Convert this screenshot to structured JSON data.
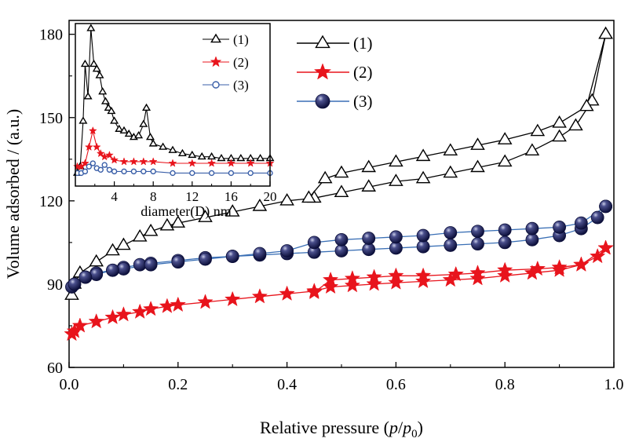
{
  "chart_data": [
    {
      "type": "line",
      "xlabel_main": "Relative pressure (",
      "xlabel_p": "p",
      "xlabel_slash": "/",
      "xlabel_p0": "p",
      "xlabel_sub": "0",
      "xlabel_close": ")",
      "ylabel": "Volume adsorbed / (a.u.)",
      "xlim": [
        0.0,
        1.0
      ],
      "ylim": [
        60,
        185
      ],
      "xticks": [
        "0.0",
        "0.2",
        "0.4",
        "0.6",
        "0.8",
        "1.0"
      ],
      "yticks": [
        "60",
        "90",
        "120",
        "150",
        "180"
      ],
      "legend_placement": "top-right",
      "series": [
        {
          "name": "(1)",
          "color": "#000000",
          "marker": "triangle",
          "adsorption": [
            [
              0.005,
              86
            ],
            [
              0.01,
              90
            ],
            [
              0.02,
              94
            ],
            [
              0.05,
              98
            ],
            [
              0.08,
              102
            ],
            [
              0.1,
              104
            ],
            [
              0.13,
              107
            ],
            [
              0.15,
              109
            ],
            [
              0.18,
              111
            ],
            [
              0.2,
              112
            ],
            [
              0.25,
              114
            ],
            [
              0.3,
              116
            ],
            [
              0.35,
              118
            ],
            [
              0.4,
              120
            ],
            [
              0.45,
              121
            ],
            [
              0.5,
              123
            ],
            [
              0.55,
              125
            ],
            [
              0.6,
              127
            ],
            [
              0.65,
              128
            ],
            [
              0.7,
              130
            ],
            [
              0.75,
              132
            ],
            [
              0.8,
              134
            ],
            [
              0.85,
              138
            ],
            [
              0.9,
              143
            ],
            [
              0.93,
              147
            ],
            [
              0.96,
              156
            ],
            [
              0.985,
              180
            ]
          ],
          "desorption": [
            [
              0.985,
              180
            ],
            [
              0.95,
              154
            ],
            [
              0.9,
              148
            ],
            [
              0.86,
              145
            ],
            [
              0.8,
              142
            ],
            [
              0.75,
              140
            ],
            [
              0.7,
              138
            ],
            [
              0.65,
              136
            ],
            [
              0.6,
              134
            ],
            [
              0.55,
              132
            ],
            [
              0.5,
              130
            ],
            [
              0.47,
              128
            ],
            [
              0.44,
              121
            ]
          ]
        },
        {
          "name": "(2)",
          "color": "#e8141c",
          "marker": "star",
          "adsorption": [
            [
              0.005,
              72
            ],
            [
              0.01,
              73
            ],
            [
              0.02,
              75
            ],
            [
              0.05,
              76.5
            ],
            [
              0.08,
              78
            ],
            [
              0.1,
              79
            ],
            [
              0.13,
              80
            ],
            [
              0.15,
              81
            ],
            [
              0.18,
              82
            ],
            [
              0.2,
              82.5
            ],
            [
              0.25,
              83.5
            ],
            [
              0.3,
              84.5
            ],
            [
              0.35,
              85.5
            ],
            [
              0.4,
              86.5
            ],
            [
              0.45,
              87.5
            ],
            [
              0.48,
              89
            ],
            [
              0.52,
              89.5
            ],
            [
              0.56,
              90
            ],
            [
              0.6,
              90.5
            ],
            [
              0.65,
              91
            ],
            [
              0.7,
              91.5
            ],
            [
              0.75,
              92
            ],
            [
              0.8,
              93
            ],
            [
              0.85,
              94
            ],
            [
              0.9,
              95
            ],
            [
              0.94,
              97
            ],
            [
              0.97,
              100
            ],
            [
              0.985,
              103
            ]
          ],
          "desorption": [
            [
              0.985,
              103
            ],
            [
              0.94,
              97
            ],
            [
              0.9,
              96
            ],
            [
              0.86,
              95.5
            ],
            [
              0.8,
              95
            ],
            [
              0.75,
              94
            ],
            [
              0.71,
              93.5
            ],
            [
              0.65,
              93
            ],
            [
              0.6,
              93
            ],
            [
              0.56,
              92.5
            ],
            [
              0.52,
              92
            ],
            [
              0.48,
              91.5
            ],
            [
              0.45,
              87
            ]
          ]
        },
        {
          "name": "(3)",
          "color": "#1b1f5e",
          "marker": "sphere",
          "line_color": "#3a6fb5",
          "adsorption": [
            [
              0.005,
              89
            ],
            [
              0.01,
              90
            ],
            [
              0.03,
              92.5
            ],
            [
              0.05,
              94
            ],
            [
              0.08,
              95
            ],
            [
              0.1,
              96
            ],
            [
              0.13,
              97
            ],
            [
              0.15,
              97.5
            ],
            [
              0.2,
              98.5
            ],
            [
              0.25,
              99.5
            ],
            [
              0.3,
              100
            ],
            [
              0.35,
              100.5
            ],
            [
              0.4,
              101
            ],
            [
              0.45,
              101.5
            ],
            [
              0.5,
              102
            ],
            [
              0.55,
              102.5
            ],
            [
              0.6,
              103
            ],
            [
              0.65,
              103.5
            ],
            [
              0.7,
              104
            ],
            [
              0.75,
              104.5
            ],
            [
              0.8,
              105
            ],
            [
              0.85,
              106
            ],
            [
              0.9,
              107.5
            ],
            [
              0.94,
              110
            ],
            [
              0.97,
              114
            ],
            [
              0.985,
              118
            ]
          ],
          "desorption": [
            [
              0.985,
              118
            ],
            [
              0.94,
              112
            ],
            [
              0.9,
              110.5
            ],
            [
              0.85,
              110
            ],
            [
              0.8,
              109.5
            ],
            [
              0.75,
              109
            ],
            [
              0.7,
              108.5
            ],
            [
              0.65,
              107.5
            ],
            [
              0.6,
              107
            ],
            [
              0.55,
              106.5
            ],
            [
              0.5,
              106
            ],
            [
              0.45,
              105
            ],
            [
              0.4,
              102
            ],
            [
              0.35,
              101
            ],
            [
              0.3,
              100
            ],
            [
              0.25,
              99
            ],
            [
              0.2,
              98
            ],
            [
              0.15,
              97
            ],
            [
              0.1,
              95.5
            ],
            [
              0.08,
              95
            ],
            [
              0.05,
              93.5
            ],
            [
              0.03,
              92.5
            ],
            [
              0.01,
              90
            ]
          ]
        }
      ]
    },
    {
      "type": "line",
      "placement": "inset-top-left",
      "xlabel": "diameter(D) nm",
      "xlim": [
        0,
        20
      ],
      "ylim": [
        0,
        100
      ],
      "xticks": [
        "4",
        "8",
        "12",
        "16",
        "20"
      ],
      "xtick_values": [
        4,
        8,
        12,
        16,
        20
      ],
      "legend_placement": "top-right",
      "series": [
        {
          "name": "(1)",
          "color": "#000000",
          "marker": "triangle-open",
          "points": [
            [
              0.2,
              8
            ],
            [
              0.5,
              12
            ],
            [
              0.8,
              40
            ],
            [
              1.0,
              75
            ],
            [
              1.3,
              55
            ],
            [
              1.6,
              97
            ],
            [
              1.9,
              75
            ],
            [
              2.2,
              72
            ],
            [
              2.5,
              68
            ],
            [
              2.8,
              58
            ],
            [
              3.1,
              52
            ],
            [
              3.4,
              48
            ],
            [
              3.7,
              46
            ],
            [
              4.0,
              40
            ],
            [
              4.5,
              35
            ],
            [
              5.0,
              34
            ],
            [
              5.5,
              32
            ],
            [
              6.0,
              30
            ],
            [
              6.5,
              31
            ],
            [
              7.0,
              38
            ],
            [
              7.3,
              48
            ],
            [
              7.7,
              30
            ],
            [
              8.0,
              26
            ],
            [
              9.0,
              24
            ],
            [
              10.0,
              22
            ],
            [
              11.0,
              20
            ],
            [
              12.0,
              19
            ],
            [
              13.0,
              18
            ],
            [
              14.0,
              18
            ],
            [
              15.0,
              17
            ],
            [
              16.0,
              17
            ],
            [
              17.0,
              17
            ],
            [
              18.0,
              17
            ],
            [
              19.0,
              17
            ],
            [
              20.0,
              17
            ]
          ]
        },
        {
          "name": "(2)",
          "color": "#e8141c",
          "marker": "star",
          "points": [
            [
              0.2,
              12
            ],
            [
              0.6,
              12
            ],
            [
              1.0,
              14
            ],
            [
              1.4,
              24
            ],
            [
              1.8,
              34
            ],
            [
              2.2,
              24
            ],
            [
              2.6,
              20
            ],
            [
              3.0,
              18
            ],
            [
              3.5,
              19
            ],
            [
              4.0,
              16
            ],
            [
              5.0,
              15
            ],
            [
              6.0,
              15
            ],
            [
              7.0,
              15
            ],
            [
              8.0,
              15
            ],
            [
              10.0,
              14
            ],
            [
              12.0,
              14
            ],
            [
              14.0,
              14
            ],
            [
              16.0,
              14
            ],
            [
              18.0,
              14
            ],
            [
              20.0,
              14
            ]
          ]
        },
        {
          "name": "(3)",
          "color": "#3a5fa8",
          "marker": "circle",
          "points": [
            [
              0.2,
              8
            ],
            [
              0.6,
              8
            ],
            [
              1.0,
              9
            ],
            [
              1.4,
              12
            ],
            [
              1.8,
              14
            ],
            [
              2.2,
              11
            ],
            [
              2.6,
              10
            ],
            [
              3.0,
              13
            ],
            [
              3.5,
              10
            ],
            [
              4.0,
              9
            ],
            [
              5.0,
              9
            ],
            [
              6.0,
              9
            ],
            [
              7.0,
              9
            ],
            [
              8.0,
              9
            ],
            [
              10.0,
              8
            ],
            [
              12.0,
              8
            ],
            [
              14.0,
              8
            ],
            [
              16.0,
              8
            ],
            [
              18.0,
              8
            ],
            [
              20.0,
              8
            ]
          ]
        }
      ]
    }
  ]
}
